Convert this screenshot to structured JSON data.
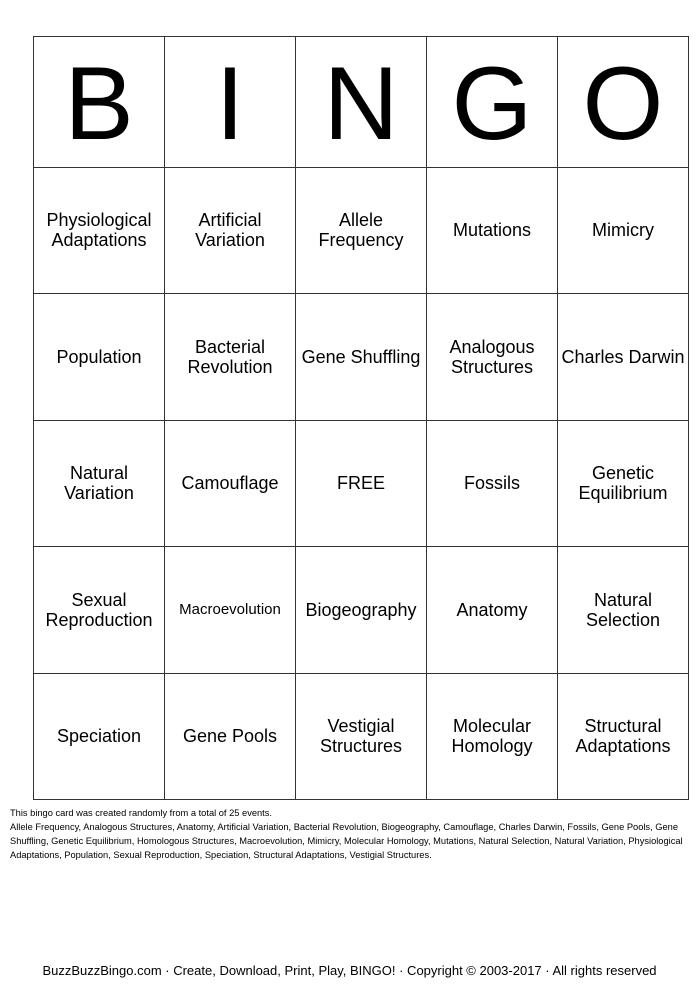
{
  "header": [
    "B",
    "I",
    "N",
    "G",
    "O"
  ],
  "rows": [
    [
      "Physiological Adaptations",
      "Artificial Variation",
      "Allele Frequency",
      "Mutations",
      "Mimicry"
    ],
    [
      "Population",
      "Bacterial Revolution",
      "Gene Shuffling",
      "Analogous Structures",
      "Charles Darwin"
    ],
    [
      "Natural Variation",
      "Camouflage",
      "FREE",
      "Fossils",
      "Genetic Equilibrium"
    ],
    [
      "Sexual Reproduction",
      "Macroevolution",
      "Biogeography",
      "Anatomy",
      "Natural Selection"
    ],
    [
      "Speciation",
      "Gene Pools",
      "Vestigial Structures",
      "Molecular Homology",
      "Structural Adaptations"
    ]
  ],
  "info": {
    "line1": "This bingo card was created randomly from a total of 25 events.",
    "events": "Allele Frequency, Analogous Structures, Anatomy, Artificial Variation, Bacterial Revolution, Biogeography, Camouflage, Charles Darwin, Fossils, Gene Pools, Gene Shuffling, Genetic Equilibrium, Homologous Structures, Macroevolution, Mimicry, Molecular Homology, Mutations, Natural Selection, Natural Variation, Physiological Adaptations, Population, Sexual Reproduction, Speciation, Structural Adaptations, Vestigial Structures."
  },
  "footer": "BuzzBuzzBingo.com · Create, Download, Print, Play, BINGO! · Copyright © 2003-2017 · All rights reserved"
}
